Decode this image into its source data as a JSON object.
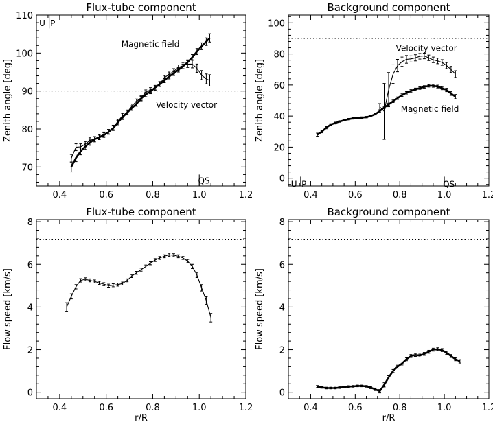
{
  "chart_data": [
    {
      "type": "line",
      "title": "Flux-tube component",
      "xlabel": "",
      "ylabel": "Zenith angle [deg]",
      "xlim": [
        0.3,
        1.2
      ],
      "ylim": [
        65,
        110
      ],
      "xticks": [
        "0.4",
        "0.6",
        "0.8",
        "1.0",
        "1.2"
      ],
      "yticks": [
        "70",
        "80",
        "90",
        "100",
        "110"
      ],
      "reference_line": {
        "y": 90,
        "style": "dotted"
      },
      "annotations": [
        {
          "text": "U",
          "x": 0.325,
          "y": 108
        },
        {
          "text": "P",
          "x": 0.37,
          "y": 108
        },
        {
          "text": "QS",
          "x": 1.02,
          "y": 66.5
        },
        {
          "text": "Magnetic field",
          "x": 0.79,
          "y": 102.5
        },
        {
          "text": "Velocity vector",
          "x": 0.945,
          "y": 86.5
        }
      ],
      "markers": [
        {
          "x": 0.355,
          "y": [
            106.5,
            110
          ]
        },
        {
          "x": 1.0,
          "y": [
            65,
            68
          ]
        }
      ],
      "series": [
        {
          "name": "Magnetic field",
          "bold": true,
          "x": [
            0.45,
            0.47,
            0.49,
            0.51,
            0.53,
            0.55,
            0.57,
            0.59,
            0.61,
            0.63,
            0.65,
            0.67,
            0.69,
            0.71,
            0.73,
            0.75,
            0.77,
            0.79,
            0.81,
            0.83,
            0.85,
            0.87,
            0.89,
            0.91,
            0.93,
            0.95,
            0.97,
            0.99,
            1.01,
            1.03,
            1.045
          ],
          "y": [
            70,
            72.4,
            74.1,
            75.4,
            76.4,
            77.3,
            77.8,
            78.4,
            79.2,
            80.2,
            81.7,
            83.1,
            84.3,
            85.5,
            86.6,
            88.0,
            89.1,
            89.9,
            90.9,
            91.8,
            92.8,
            93.8,
            94.7,
            95.6,
            96.5,
            97.6,
            98.9,
            100.4,
            101.8,
            103.0,
            104.0
          ],
          "err": [
            1.3,
            1.0,
            0.9,
            0.8,
            0.7,
            0.7,
            0.6,
            0.6,
            0.6,
            0.6,
            0.6,
            0.6,
            0.6,
            0.6,
            0.6,
            0.6,
            0.6,
            0.6,
            0.6,
            0.6,
            0.6,
            0.6,
            0.6,
            0.6,
            0.6,
            0.6,
            0.7,
            0.8,
            0.9,
            1.0,
            1.1
          ]
        },
        {
          "name": "Velocity vector",
          "bold": false,
          "x": [
            0.45,
            0.47,
            0.49,
            0.51,
            0.53,
            0.55,
            0.57,
            0.59,
            0.61,
            0.63,
            0.65,
            0.67,
            0.69,
            0.71,
            0.73,
            0.75,
            0.77,
            0.79,
            0.81,
            0.83,
            0.85,
            0.87,
            0.89,
            0.91,
            0.93,
            0.95,
            0.97,
            0.99,
            1.01,
            1.03,
            1.045
          ],
          "y": [
            72.3,
            75.2,
            75.3,
            76.0,
            77.0,
            77.4,
            78.0,
            78.6,
            79.3,
            80.4,
            82.0,
            83.5,
            84.4,
            86.0,
            87.3,
            88.2,
            89.7,
            90.3,
            90.7,
            91.9,
            93.5,
            94.4,
            95.2,
            96.2,
            96.7,
            97.1,
            97.1,
            96.0,
            94.2,
            93.2,
            92.8
          ],
          "err": [
            1.0,
            0.9,
            0.8,
            0.7,
            0.7,
            0.6,
            0.6,
            0.6,
            0.6,
            0.6,
            0.6,
            0.6,
            0.6,
            0.6,
            0.6,
            0.6,
            0.6,
            0.6,
            0.6,
            0.6,
            0.6,
            0.6,
            0.7,
            0.7,
            0.8,
            0.9,
            1.0,
            1.1,
            1.2,
            1.3,
            1.5
          ]
        }
      ]
    },
    {
      "type": "line",
      "title": "Background component",
      "xlabel": "",
      "ylabel": "Zenith angle [deg]",
      "xlim": [
        0.3,
        1.2
      ],
      "ylim": [
        -5,
        105
      ],
      "xticks": [
        "0.4",
        "0.6",
        "0.8",
        "1.0",
        "1.2"
      ],
      "yticks": [
        "0",
        "20",
        "40",
        "60",
        "80",
        "100"
      ],
      "reference_line": {
        "y": 90,
        "style": "dotted"
      },
      "annotations": [
        {
          "text": "U",
          "x": 0.325,
          "y": -3.5
        },
        {
          "text": "P",
          "x": 0.37,
          "y": -3.5
        },
        {
          "text": "QS",
          "x": 1.02,
          "y": -3.5
        },
        {
          "text": "Velocity vector",
          "x": 0.92,
          "y": 84
        },
        {
          "text": "Magnetic field",
          "x": 0.935,
          "y": 45
        }
      ],
      "markers": [
        {
          "x": 0.355,
          "y": [
            -5,
            1
          ]
        },
        {
          "x": 1.0,
          "y": [
            -5,
            1
          ]
        }
      ],
      "series": [
        {
          "name": "Magnetic field",
          "bold": true,
          "x": [
            0.43,
            0.45,
            0.47,
            0.49,
            0.51,
            0.53,
            0.55,
            0.57,
            0.59,
            0.61,
            0.63,
            0.65,
            0.67,
            0.69,
            0.71,
            0.73,
            0.75,
            0.77,
            0.79,
            0.81,
            0.83,
            0.85,
            0.87,
            0.89,
            0.91,
            0.93,
            0.95,
            0.97,
            0.99,
            1.01,
            1.03,
            1.05
          ],
          "y": [
            28.0,
            30.0,
            32.5,
            34.5,
            35.5,
            36.5,
            37.3,
            38.0,
            38.5,
            38.8,
            39.0,
            39.3,
            40.0,
            41.2,
            43.2,
            45.5,
            47.5,
            49.5,
            51.5,
            53.5,
            55.0,
            56.2,
            57.2,
            58.0,
            58.8,
            59.5,
            59.5,
            59.0,
            58.0,
            56.8,
            54.5,
            52.5
          ],
          "err": [
            1.0,
            0.8,
            0.7,
            0.6,
            0.6,
            0.5,
            0.5,
            0.5,
            0.5,
            0.5,
            0.5,
            0.5,
            0.5,
            0.5,
            0.6,
            0.7,
            0.8,
            0.8,
            0.8,
            0.8,
            0.8,
            0.8,
            0.8,
            0.8,
            0.8,
            0.8,
            0.9,
            0.9,
            1.0,
            1.1,
            1.2,
            1.4
          ]
        },
        {
          "name": "Velocity vector",
          "bold": false,
          "x": [
            0.71,
            0.73,
            0.75,
            0.77,
            0.79,
            0.81,
            0.83,
            0.85,
            0.87,
            0.89,
            0.91,
            0.93,
            0.95,
            0.97,
            0.99,
            1.01,
            1.03,
            1.05
          ],
          "y": [
            46.0,
            43.0,
            57.0,
            67.0,
            72.5,
            75.0,
            76.5,
            76.8,
            77.5,
            78.5,
            78.7,
            77.5,
            76.2,
            75.5,
            74.5,
            72.5,
            70.0,
            67.0
          ],
          "err": [
            2.0,
            18.0,
            11.0,
            6.0,
            4.0,
            3.0,
            2.5,
            2.0,
            2.0,
            1.8,
            1.8,
            1.8,
            1.8,
            1.8,
            1.8,
            2.0,
            2.0,
            2.2
          ]
        }
      ]
    },
    {
      "type": "line",
      "title": "Flux-tube component",
      "xlabel": "r/R",
      "ylabel": "Flow speed [km/s]",
      "xlim": [
        0.3,
        1.2
      ],
      "ylim": [
        -0.3,
        8.1
      ],
      "xticks": [
        "0.4",
        "0.6",
        "0.8",
        "1.0",
        "1.2"
      ],
      "yticks": [
        "0",
        "2",
        "4",
        "6",
        "8"
      ],
      "reference_line": {
        "y": 7.15,
        "style": "dotted"
      },
      "annotations": [],
      "series": [
        {
          "name": "",
          "bold": false,
          "x": [
            0.43,
            0.45,
            0.47,
            0.49,
            0.51,
            0.53,
            0.55,
            0.57,
            0.59,
            0.61,
            0.63,
            0.65,
            0.67,
            0.69,
            0.71,
            0.73,
            0.75,
            0.77,
            0.79,
            0.81,
            0.83,
            0.85,
            0.87,
            0.89,
            0.91,
            0.93,
            0.95,
            0.97,
            0.99,
            1.01,
            1.03,
            1.05
          ],
          "y": [
            4.0,
            4.5,
            4.95,
            5.25,
            5.3,
            5.25,
            5.2,
            5.13,
            5.07,
            5.0,
            5.02,
            5.05,
            5.1,
            5.25,
            5.45,
            5.6,
            5.75,
            5.9,
            6.05,
            6.2,
            6.3,
            6.38,
            6.45,
            6.43,
            6.38,
            6.3,
            6.15,
            5.9,
            5.5,
            4.9,
            4.3,
            3.5
          ],
          "err": [
            0.2,
            0.12,
            0.1,
            0.08,
            0.07,
            0.07,
            0.07,
            0.07,
            0.07,
            0.07,
            0.07,
            0.07,
            0.07,
            0.07,
            0.07,
            0.07,
            0.07,
            0.07,
            0.07,
            0.07,
            0.07,
            0.07,
            0.07,
            0.07,
            0.07,
            0.07,
            0.08,
            0.1,
            0.12,
            0.15,
            0.18,
            0.2
          ]
        }
      ]
    },
    {
      "type": "line",
      "title": "Background component",
      "xlabel": "r/R",
      "ylabel": "Flow speed [km/s]",
      "xlim": [
        0.3,
        1.2
      ],
      "ylim": [
        -0.3,
        8.1
      ],
      "xticks": [
        "0.4",
        "0.6",
        "0.8",
        "1.0",
        "1.2"
      ],
      "yticks": [
        "0",
        "2",
        "4",
        "6",
        "8"
      ],
      "reference_line": {
        "y": 7.15,
        "style": "dotted"
      },
      "annotations": [],
      "series": [
        {
          "name": "",
          "bold": true,
          "x": [
            0.43,
            0.45,
            0.47,
            0.49,
            0.51,
            0.53,
            0.55,
            0.57,
            0.59,
            0.61,
            0.63,
            0.65,
            0.67,
            0.69,
            0.71,
            0.73,
            0.75,
            0.77,
            0.79,
            0.81,
            0.83,
            0.85,
            0.87,
            0.89,
            0.91,
            0.93,
            0.95,
            0.97,
            0.99,
            1.01,
            1.03,
            1.05,
            1.07
          ],
          "y": [
            0.27,
            0.23,
            0.2,
            0.2,
            0.2,
            0.22,
            0.25,
            0.27,
            0.28,
            0.3,
            0.3,
            0.28,
            0.22,
            0.14,
            0.05,
            0.35,
            0.7,
            1.0,
            1.2,
            1.35,
            1.55,
            1.7,
            1.75,
            1.72,
            1.8,
            1.9,
            2.0,
            2.02,
            1.98,
            1.85,
            1.7,
            1.55,
            1.45
          ],
          "err": [
            0.05,
            0.04,
            0.04,
            0.04,
            0.04,
            0.04,
            0.04,
            0.04,
            0.04,
            0.04,
            0.04,
            0.04,
            0.05,
            0.06,
            0.08,
            0.1,
            0.08,
            0.07,
            0.07,
            0.07,
            0.07,
            0.07,
            0.07,
            0.07,
            0.07,
            0.07,
            0.07,
            0.07,
            0.07,
            0.07,
            0.07,
            0.07,
            0.08
          ]
        }
      ]
    }
  ]
}
